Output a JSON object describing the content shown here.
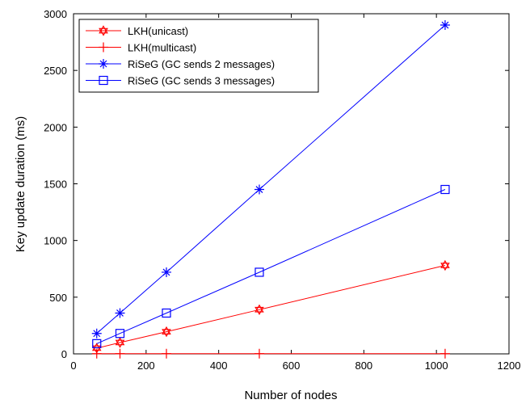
{
  "chart_data": {
    "type": "line",
    "title": "",
    "xlabel": "Number of nodes",
    "ylabel": "Key update duration (ms)",
    "xlim": [
      0,
      1200
    ],
    "ylim": [
      0,
      3000
    ],
    "xticks": [
      0,
      200,
      400,
      600,
      800,
      1000,
      1200
    ],
    "yticks": [
      0,
      500,
      1000,
      1500,
      2000,
      2500,
      3000
    ],
    "grid": false,
    "legend_position": "top-left",
    "x": [
      64,
      128,
      256,
      512,
      1024
    ],
    "series": [
      {
        "name": "LKH(unicast)",
        "values": [
          50,
          100,
          195,
          390,
          780
        ],
        "color": "#ff0000",
        "marker": "hexagram"
      },
      {
        "name": "LKH(multicast)",
        "values": [
          2,
          2,
          2,
          2,
          2
        ],
        "color": "#ff0000",
        "marker": "plus"
      },
      {
        "name": "RiSeG (GC sends 2 messages)",
        "values": [
          180,
          360,
          720,
          1450,
          2900
        ],
        "color": "#0000ff",
        "marker": "asterisk"
      },
      {
        "name": "RiSeG (GC sends 3 messages)",
        "values": [
          90,
          180,
          360,
          720,
          1450
        ],
        "color": "#0000ff",
        "marker": "square"
      }
    ]
  }
}
